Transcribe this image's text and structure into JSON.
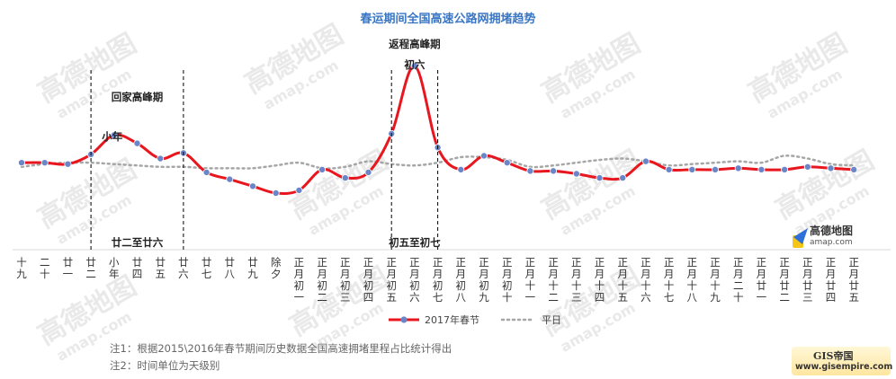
{
  "title": "春运期间全国高速公路网拥堵趋势",
  "annotations": {
    "return_peak": "回家高峰期",
    "back_peak": "返程高峰期",
    "xiaonian": "小年",
    "chuliu": "初六",
    "range1": "廿二至廿六",
    "range2": "初五至初七"
  },
  "notes": {
    "note1": "注1：根据2015\\2016年春节期间历史数据全国高速拥堵里程占比统计得出",
    "note2": "注2：时间单位为天级别"
  },
  "logo": {
    "name": "高德地图",
    "sub": "amap.com"
  },
  "badge": {
    "name": "GIS帝国",
    "url": "www.gisempire.com"
  },
  "watermark": {
    "main": "高德地图",
    "sub": "amap.com"
  },
  "colors": {
    "title": "#3a76c4",
    "series_2017": "#e8161e",
    "marker": "#6a86c8",
    "series_avg": "#a6a6a6"
  },
  "chart_data": {
    "type": "line",
    "categories": [
      "十九",
      "二十",
      "廿一",
      "廿二",
      "小年",
      "廿四",
      "廿五",
      "廿六",
      "廿七",
      "廿八",
      "廿九",
      "除夕",
      "正月初一",
      "正月初二",
      "正月初三",
      "正月初四",
      "正月初五",
      "正月初六",
      "正月初七",
      "正月初八",
      "正月初九",
      "正月初十",
      "正月十一",
      "正月十二",
      "正月十三",
      "正月十四",
      "正月十五",
      "正月十六",
      "正月十七",
      "正月十八",
      "正月十九",
      "正月二十",
      "正月廿一",
      "正月廿二",
      "正月廿三",
      "正月廿四",
      "正月廿五"
    ],
    "series": [
      {
        "name": "2017年春节",
        "values": [
          48,
          48,
          47,
          54,
          68,
          62,
          51,
          55,
          41,
          36,
          31,
          26,
          28,
          43,
          37,
          41,
          69,
          118,
          59,
          43,
          53,
          48,
          42,
          42,
          40,
          37,
          37,
          49,
          43,
          43,
          43,
          44,
          43,
          43,
          45,
          44,
          43
        ]
      },
      {
        "name": "平日",
        "values": [
          45,
          47,
          48,
          48,
          47,
          46,
          45,
          45,
          44,
          44,
          44,
          46,
          48,
          44,
          45,
          49,
          47,
          46,
          48,
          52,
          52,
          50,
          45,
          46,
          48,
          50,
          51,
          49,
          46,
          47,
          48,
          49,
          48,
          53,
          51,
          47,
          46
        ]
      }
    ],
    "ylim": [
      0,
      130
    ],
    "legend": "bottom",
    "markers": true,
    "vertical_markers": [
      {
        "category": "廿二",
        "label": "回家高峰期"
      },
      {
        "category": "廿六"
      },
      {
        "category": "正月初五",
        "label": "返程高峰期"
      },
      {
        "category": "正月初七"
      }
    ]
  }
}
